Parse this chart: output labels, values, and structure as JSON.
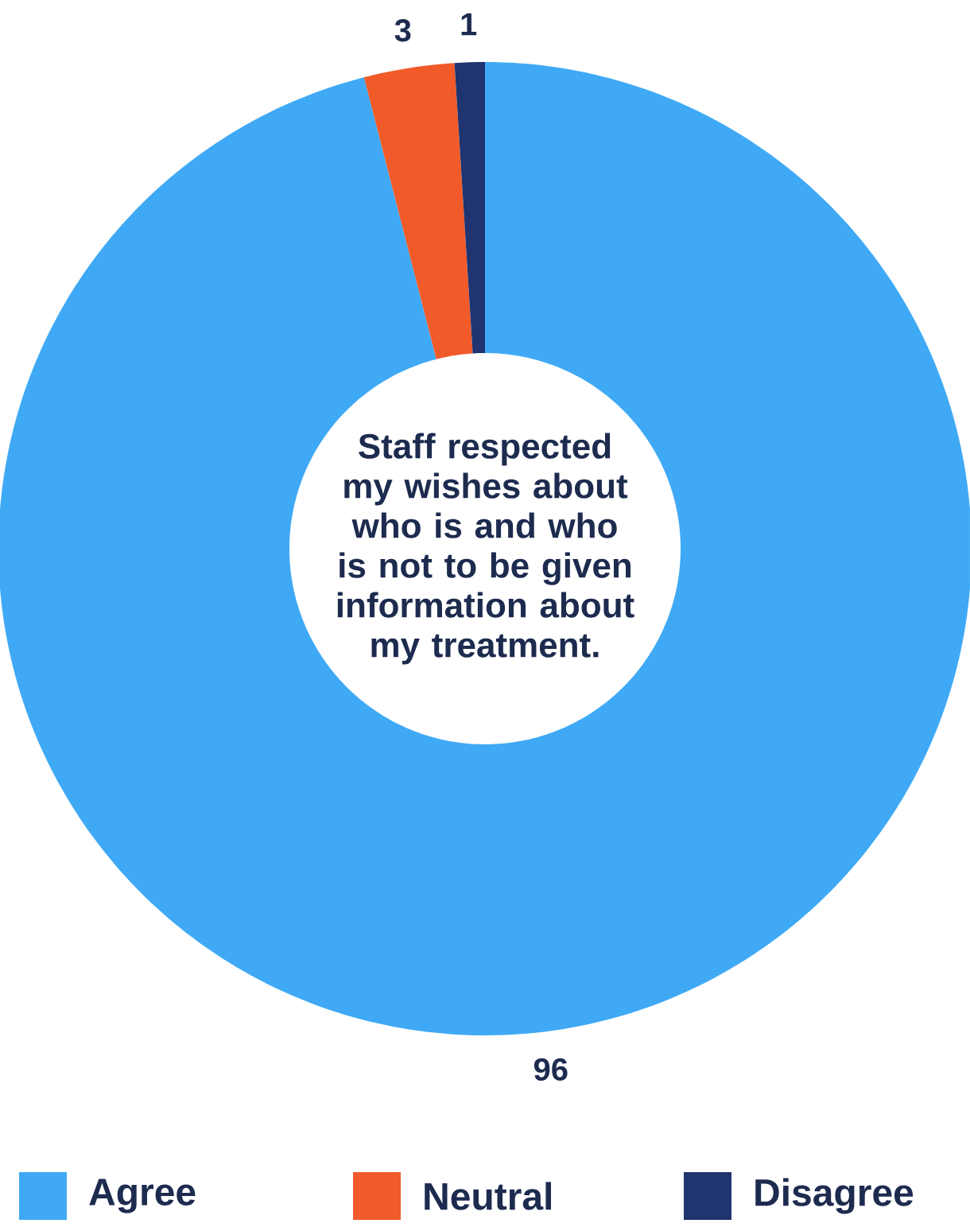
{
  "chart_data": {
    "type": "donut",
    "title": "Staff respected my wishes about who is and who is not to be given information about my treatment.",
    "categories": [
      "Agree",
      "Neutral",
      "Disagree"
    ],
    "values": [
      96,
      3,
      1
    ],
    "colors": [
      "#3fa9f5",
      "#f15a29",
      "#1f3470"
    ],
    "data_labels": true,
    "legend": "bottom"
  }
}
